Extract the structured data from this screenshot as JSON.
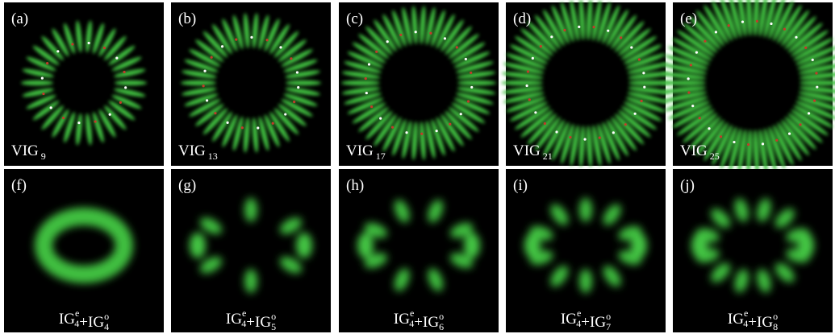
{
  "panels": [
    {
      "label": "(a)",
      "caption": {
        "terms": [
          {
            "base": "VIG",
            "sub": "9"
          }
        ]
      }
    },
    {
      "label": "(b)",
      "caption": {
        "terms": [
          {
            "base": "VIG",
            "sub": "13"
          }
        ]
      }
    },
    {
      "label": "(c)",
      "caption": {
        "terms": [
          {
            "base": "VIG",
            "sub": "17"
          }
        ]
      }
    },
    {
      "label": "(d)",
      "caption": {
        "terms": [
          {
            "base": "VIG",
            "sub": "21"
          }
        ]
      }
    },
    {
      "label": "(e)",
      "caption": {
        "terms": [
          {
            "base": "VIG",
            "sub": "25"
          }
        ]
      }
    },
    {
      "label": "(f)",
      "caption": {
        "joiner": "+",
        "terms": [
          {
            "base": "IG",
            "sup": "e",
            "sub": "4"
          },
          {
            "base": "IG",
            "sup": "o",
            "sub": "4"
          }
        ]
      }
    },
    {
      "label": "(g)",
      "caption": {
        "joiner": "+",
        "terms": [
          {
            "base": "IG",
            "sup": "e",
            "sub": "4"
          },
          {
            "base": "IG",
            "sup": "o",
            "sub": "5"
          }
        ]
      }
    },
    {
      "label": "(h)",
      "caption": {
        "joiner": "+",
        "terms": [
          {
            "base": "IG",
            "sup": "e",
            "sub": "4"
          },
          {
            "base": "IG",
            "sup": "o",
            "sub": "6"
          }
        ]
      }
    },
    {
      "label": "(i)",
      "caption": {
        "joiner": "+",
        "terms": [
          {
            "base": "IG",
            "sup": "e",
            "sub": "4"
          },
          {
            "base": "IG",
            "sup": "o",
            "sub": "7"
          }
        ]
      }
    },
    {
      "label": "(j)",
      "caption": {
        "joiner": "+",
        "terms": [
          {
            "base": "IG",
            "sup": "e",
            "sub": "4"
          },
          {
            "base": "IG",
            "sup": "o",
            "sub": "8"
          }
        ]
      }
    }
  ]
}
